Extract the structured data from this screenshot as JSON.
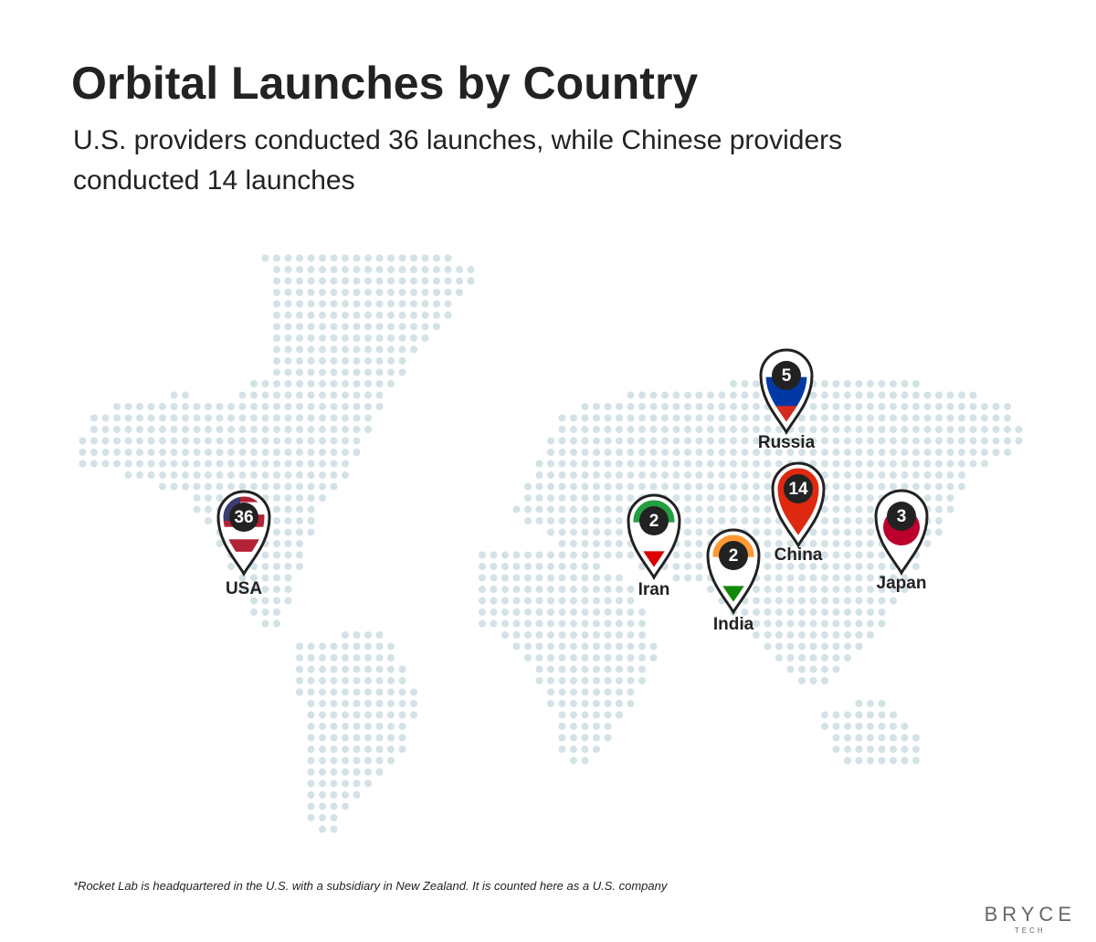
{
  "header": {
    "title": "Orbital Launches by Country",
    "subtitle": "U.S. providers conducted 36 launches, while Chinese providers conducted 14 launches"
  },
  "pins": [
    {
      "label": "USA",
      "value": 36
    },
    {
      "label": "Iran",
      "value": 2
    },
    {
      "label": "India",
      "value": 2
    },
    {
      "label": "China",
      "value": 14
    },
    {
      "label": "Russia",
      "value": 5
    },
    {
      "label": "Japan",
      "value": 3
    }
  ],
  "footnote": "*Rocket Lab is headquartered in the U.S. with a subsidiary in New Zealand. It is counted here as a U.S. company",
  "logo": {
    "name": "BRYCE",
    "tag": "TECH"
  }
}
